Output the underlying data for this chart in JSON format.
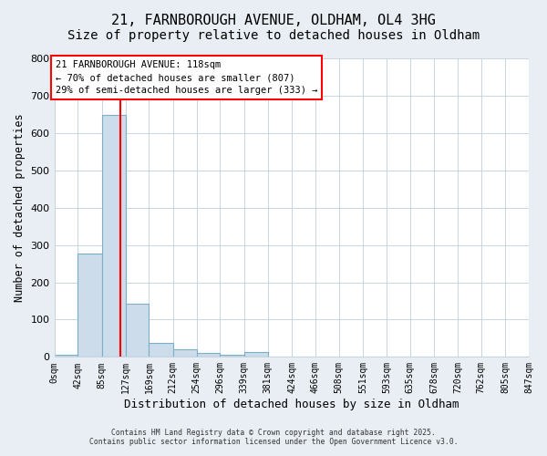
{
  "title": "21, FARNBOROUGH AVENUE, OLDHAM, OL4 3HG",
  "subtitle": "Size of property relative to detached houses in Oldham",
  "xlabel": "Distribution of detached houses by size in Oldham",
  "ylabel": "Number of detached properties",
  "bar_edges": [
    0,
    42,
    85,
    127,
    169,
    212,
    254,
    296,
    339,
    381,
    424,
    466,
    508,
    551,
    593,
    635,
    678,
    720,
    762,
    805,
    847
  ],
  "bar_heights": [
    5,
    278,
    648,
    142,
    38,
    20,
    10,
    5,
    12,
    1,
    0,
    0,
    0,
    0,
    0,
    0,
    0,
    0,
    0,
    2
  ],
  "bar_color": "#ccdcea",
  "bar_edgecolor": "#7aafc9",
  "vline_x": 118,
  "vline_color": "red",
  "ylim": [
    0,
    800
  ],
  "annotation_text": "21 FARNBOROUGH AVENUE: 118sqm\n← 70% of detached houses are smaller (807)\n29% of semi-detached houses are larger (333) →",
  "annotation_box_color": "white",
  "annotation_box_edgecolor": "red",
  "tick_labels": [
    "0sqm",
    "42sqm",
    "85sqm",
    "127sqm",
    "169sqm",
    "212sqm",
    "254sqm",
    "296sqm",
    "339sqm",
    "381sqm",
    "424sqm",
    "466sqm",
    "508sqm",
    "551sqm",
    "593sqm",
    "635sqm",
    "678sqm",
    "720sqm",
    "762sqm",
    "805sqm",
    "847sqm"
  ],
  "footer1": "Contains HM Land Registry data © Crown copyright and database right 2025.",
  "footer2": "Contains public sector information licensed under the Open Government Licence v3.0.",
  "bg_color": "#e8eef4",
  "plot_bg_color": "white",
  "grid_color": "#c8d4e0",
  "title_fontsize": 11,
  "subtitle_fontsize": 10
}
